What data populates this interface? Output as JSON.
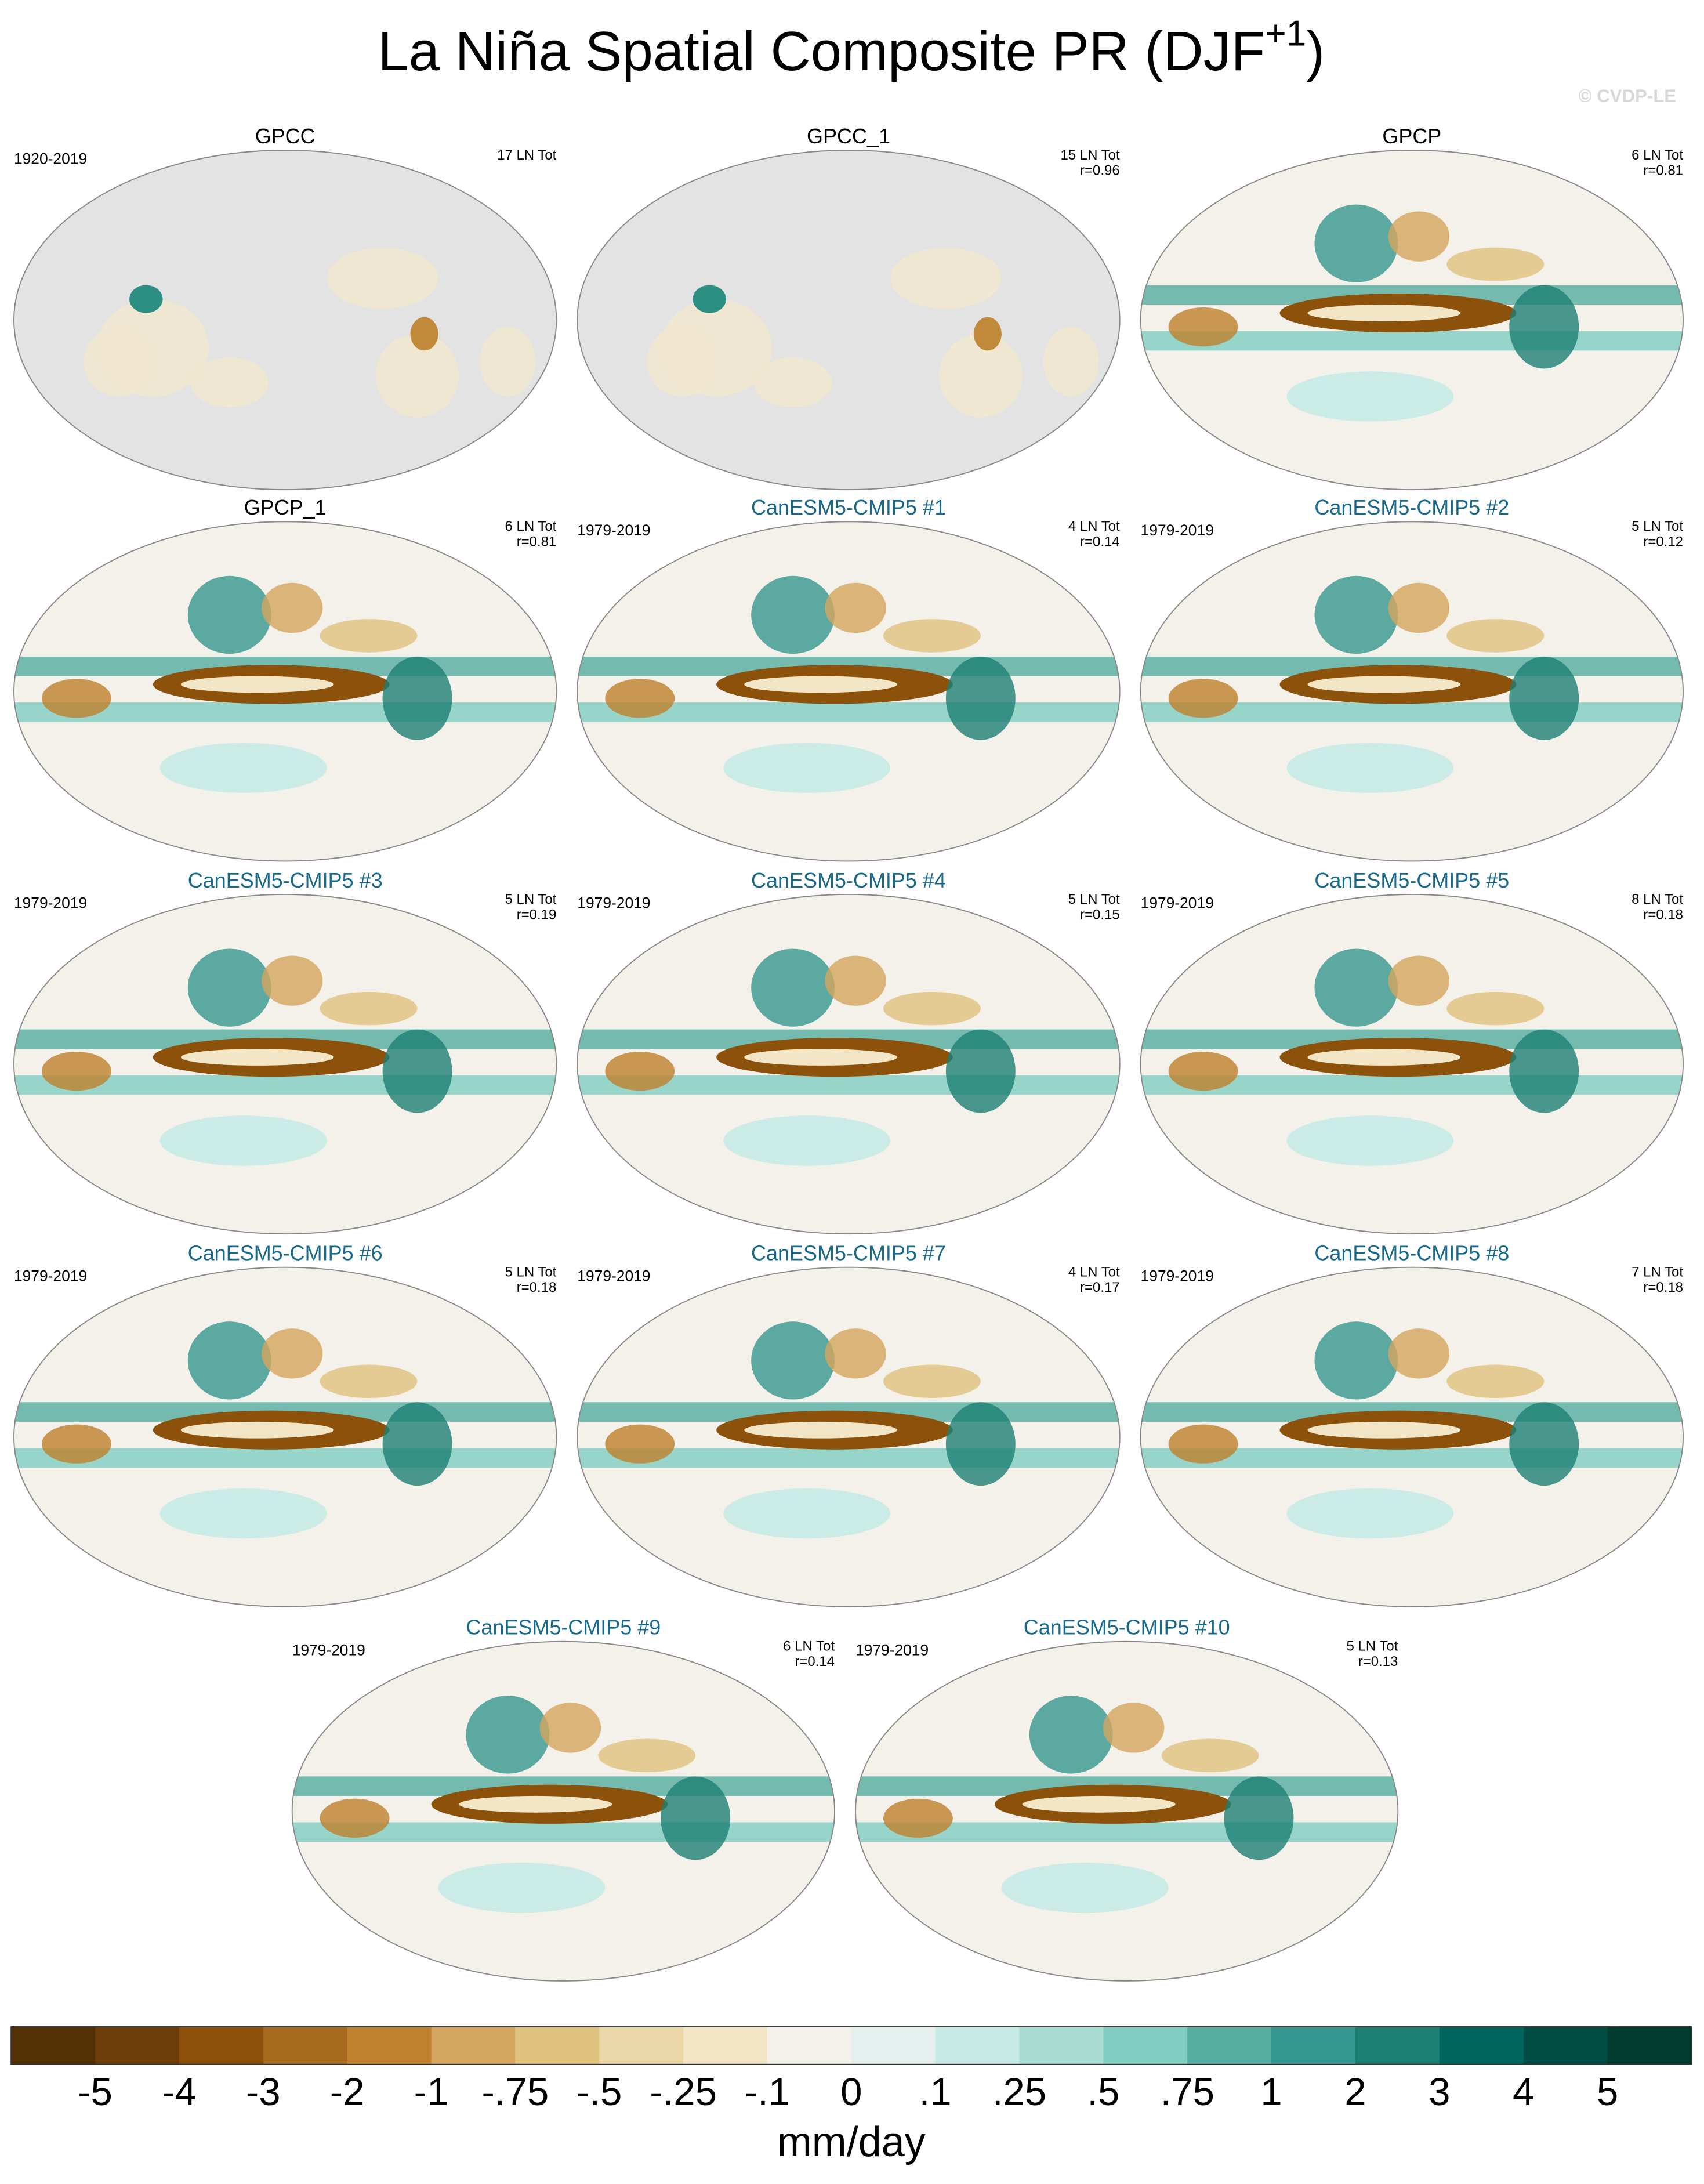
{
  "title": {
    "text": "La Niña Spatial Composite PR (DJF",
    "superscript": "+1",
    "closing": ")"
  },
  "watermark": "© CVDP-LE",
  "panels": [
    {
      "title": "GPCC",
      "title_color": "#000000",
      "period": "1920-2019",
      "count": "17 LN Tot",
      "ocean_masked": true
    },
    {
      "title": "GPCC_1",
      "title_color": "#000000",
      "count": "15 LN Tot",
      "r": "r=0.96",
      "ocean_masked": true
    },
    {
      "title": "GPCP",
      "title_color": "#000000",
      "count": "6 LN Tot",
      "r": "r=0.81"
    },
    {
      "title": "GPCP_1",
      "title_color": "#000000",
      "count": "6 LN Tot",
      "r": "r=0.81"
    },
    {
      "title": "CanESM5-CMIP5 #1",
      "title_color": "#16698a",
      "period": "1979-2019",
      "count": "4 LN Tot",
      "r": "r=0.14"
    },
    {
      "title": "CanESM5-CMIP5 #2",
      "title_color": "#16698a",
      "period": "1979-2019",
      "count": "5 LN Tot",
      "r": "r=0.12"
    },
    {
      "title": "CanESM5-CMIP5 #3",
      "title_color": "#16698a",
      "period": "1979-2019",
      "count": "5 LN Tot",
      "r": "r=0.19"
    },
    {
      "title": "CanESM5-CMIP5 #4",
      "title_color": "#16698a",
      "period": "1979-2019",
      "count": "5 LN Tot",
      "r": "r=0.15"
    },
    {
      "title": "CanESM5-CMIP5 #5",
      "title_color": "#16698a",
      "period": "1979-2019",
      "count": "8 LN Tot",
      "r": "r=0.18"
    },
    {
      "title": "CanESM5-CMIP5 #6",
      "title_color": "#16698a",
      "period": "1979-2019",
      "count": "5 LN Tot",
      "r": "r=0.18"
    },
    {
      "title": "CanESM5-CMIP5 #7",
      "title_color": "#16698a",
      "period": "1979-2019",
      "count": "4 LN Tot",
      "r": "r=0.17"
    },
    {
      "title": "CanESM5-CMIP5 #8",
      "title_color": "#16698a",
      "period": "1979-2019",
      "count": "7 LN Tot",
      "r": "r=0.18"
    },
    {
      "title": "CanESM5-CMIP5 #9",
      "title_color": "#16698a",
      "period": "1979-2019",
      "count": "6 LN Tot",
      "r": "r=0.14"
    },
    {
      "title": "CanESM5-CMIP5 #10",
      "title_color": "#16698a",
      "period": "1979-2019",
      "count": "5 LN Tot",
      "r": "r=0.13"
    }
  ],
  "colorbar": {
    "colors": [
      "#543005",
      "#6e3e0a",
      "#8c510a",
      "#a66a1e",
      "#bf812d",
      "#d4a55e",
      "#dfc27d",
      "#ead6a6",
      "#f3e6c7",
      "#f5f2ec",
      "#e4efee",
      "#c7eae5",
      "#a9dcd3",
      "#80cdc1",
      "#54ad9f",
      "#35978f",
      "#1d7f74",
      "#01665e",
      "#014d43",
      "#003c30"
    ],
    "labels": [
      "-5",
      "-4",
      "-3",
      "-2",
      "-1",
      "-.75",
      "-.5",
      "-.25",
      "-.1",
      "0",
      ".1",
      ".25",
      ".5",
      ".75",
      "1",
      "2",
      "3",
      "4",
      "5"
    ],
    "units": "mm/day"
  }
}
